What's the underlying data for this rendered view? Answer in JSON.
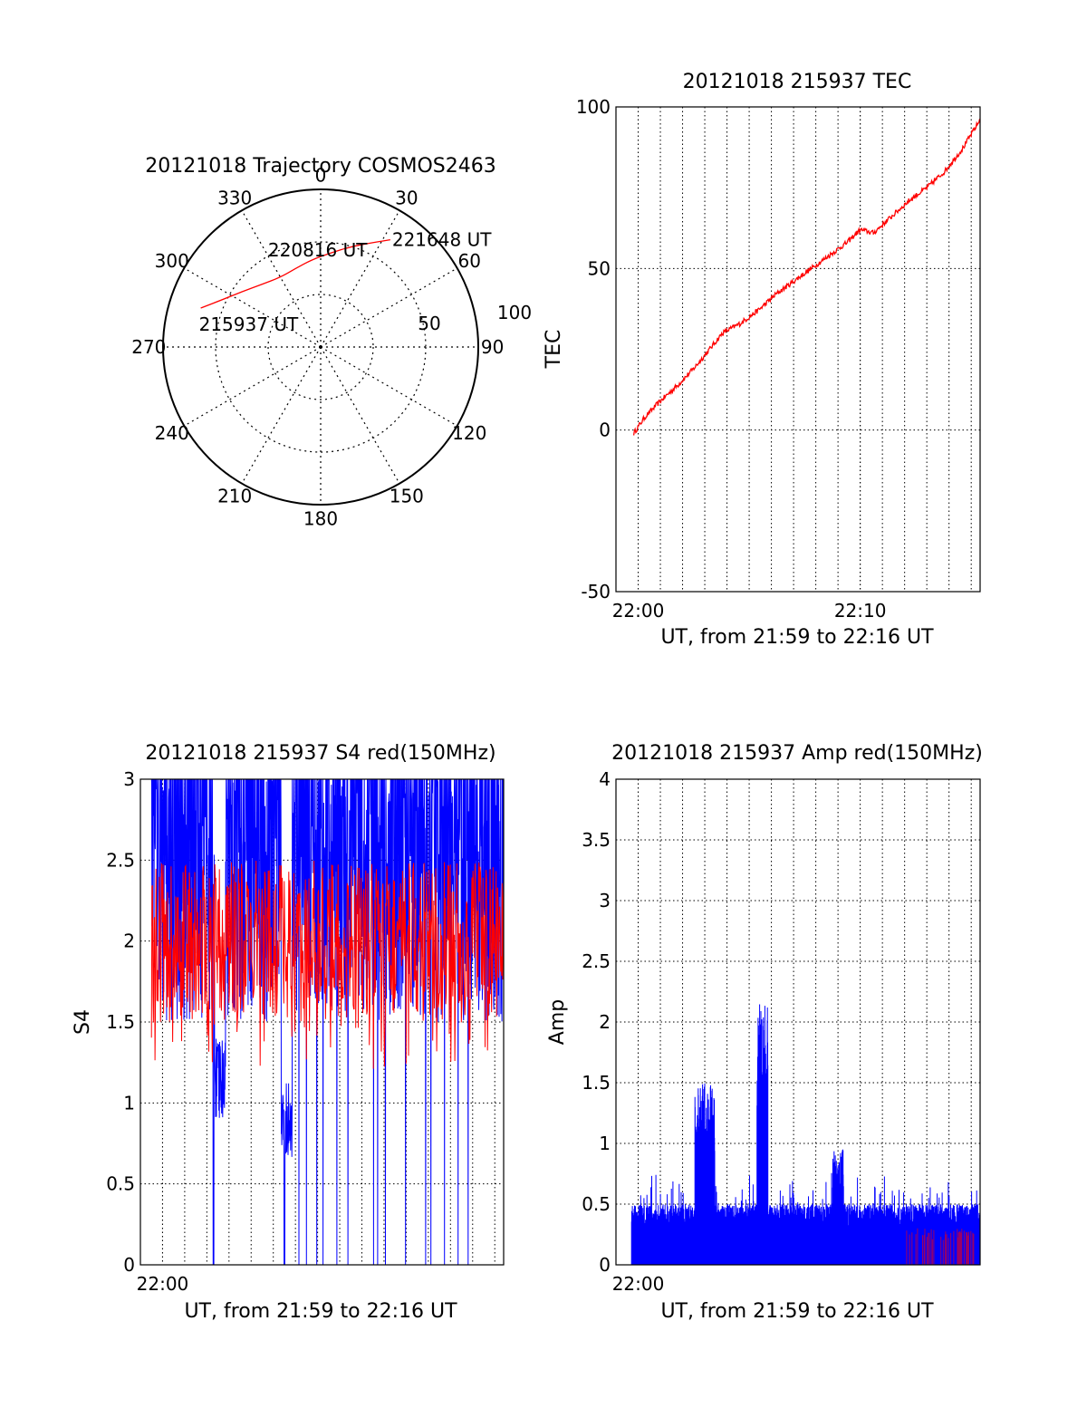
{
  "chart_data": [
    {
      "id": "trajectory",
      "type": "polar",
      "title": "20121018 Trajectory COSMOS2463",
      "angle_labels": [
        "0",
        "30",
        "60",
        "90",
        "120",
        "150",
        "180",
        "210",
        "240",
        "270",
        "300",
        "330"
      ],
      "radial_labels": [
        "50",
        "100"
      ],
      "rlim": [
        0,
        90
      ],
      "grid": true,
      "series": [
        {
          "color": "#ff0000",
          "points": [
            {
              "az": 288,
              "r": 72
            },
            {
              "az": 296,
              "r": 62
            },
            {
              "az": 305,
              "r": 55
            },
            {
              "az": 317,
              "r": 49
            },
            {
              "az": 330,
              "r": 46
            },
            {
              "az": 342,
              "r": 47
            },
            {
              "az": 354,
              "r": 50
            },
            {
              "az": 6,
              "r": 54
            },
            {
              "az": 17,
              "r": 60
            },
            {
              "az": 27,
              "r": 67
            },
            {
              "az": 33,
              "r": 73
            }
          ]
        }
      ],
      "annotations": [
        {
          "text": "215937 UT",
          "az": 288,
          "r": 72
        },
        {
          "text": "220816 UT",
          "az": 348,
          "r": 45
        },
        {
          "text": "221648 UT",
          "az": 33,
          "r": 73
        }
      ]
    },
    {
      "id": "tec",
      "type": "line",
      "title": "20121018 215937 TEC",
      "xlabel": "UT, from 21:59 to 22:16 UT",
      "ylabel": "TEC",
      "xlim": [
        0,
        16.4
      ],
      "ylim": [
        -50,
        100
      ],
      "xticks": [
        {
          "v": 1,
          "label": "22:00"
        },
        {
          "v": 11,
          "label": "22:10"
        }
      ],
      "yticks": [
        -50,
        0,
        50,
        100
      ],
      "grid": true,
      "series": [
        {
          "color": "#ff0000",
          "x": [
            0.8,
            1.3,
            2.0,
            2.8,
            3.5,
            4.1,
            4.8,
            5.6,
            6.4,
            7.2,
            8.0,
            8.8,
            9.6,
            10.4,
            11.0,
            11.6,
            12.4,
            13.2,
            14.0,
            14.8,
            15.6,
            16.4
          ],
          "y": [
            -1,
            4,
            9,
            14,
            19,
            24,
            30,
            33,
            37,
            42,
            46,
            50,
            54,
            58,
            62,
            61,
            66,
            71,
            75,
            80,
            87,
            96
          ]
        }
      ]
    },
    {
      "id": "s4",
      "type": "line",
      "title": "20121018 215937 S4 red(150MHz)",
      "xlabel": "UT, from 21:59 to 22:16 UT",
      "ylabel": "S4",
      "xlim": [
        0,
        16.4
      ],
      "ylim": [
        0,
        3
      ],
      "xticks": [
        {
          "v": 1,
          "label": "22:00"
        }
      ],
      "yticks": [
        {
          "v": 0,
          "label": "0"
        },
        {
          "v": 0.5,
          "label": "0.5"
        },
        {
          "v": 1,
          "label": "1"
        },
        {
          "v": 1.5,
          "label": "1.5"
        },
        {
          "v": 2,
          "label": "2"
        },
        {
          "v": 2.5,
          "label": "2.5"
        },
        {
          "v": 3,
          "label": "3"
        }
      ],
      "grid": true,
      "series": [
        {
          "color": "#0000ff",
          "range": [
            1.5,
            3.0
          ],
          "dips": [
            {
              "x": 3.6,
              "y": 0.9
            },
            {
              "x": 6.6,
              "y": 0.65
            }
          ]
        },
        {
          "color": "#ff0000",
          "range": [
            1.5,
            2.5
          ]
        }
      ]
    },
    {
      "id": "amp",
      "type": "line",
      "title": "20121018 215937 Amp red(150MHz)",
      "xlabel": "UT, from 21:59 to 22:16 UT",
      "ylabel": "Amp",
      "xlim": [
        0,
        16.4
      ],
      "ylim": [
        0,
        4
      ],
      "xticks": [
        {
          "v": 1,
          "label": "22:00"
        }
      ],
      "yticks": [
        {
          "v": 0,
          "label": "0"
        },
        {
          "v": 0.5,
          "label": "0.5"
        },
        {
          "v": 1,
          "label": "1"
        },
        {
          "v": 1.5,
          "label": "1.5"
        },
        {
          "v": 2,
          "label": "2"
        },
        {
          "v": 2.5,
          "label": "2.5"
        },
        {
          "v": 3,
          "label": "3"
        },
        {
          "v": 3.5,
          "label": "3.5"
        },
        {
          "v": 4,
          "label": "4"
        }
      ],
      "grid": true,
      "series": [
        {
          "color": "#0000ff",
          "base": 0.3,
          "peaks": [
            {
              "x": 4.0,
              "y": 1.5
            },
            {
              "x": 6.6,
              "y": 2.15
            },
            {
              "x": 10.0,
              "y": 0.95
            }
          ]
        },
        {
          "color": "#ff0000",
          "base": 0.2
        }
      ]
    }
  ]
}
